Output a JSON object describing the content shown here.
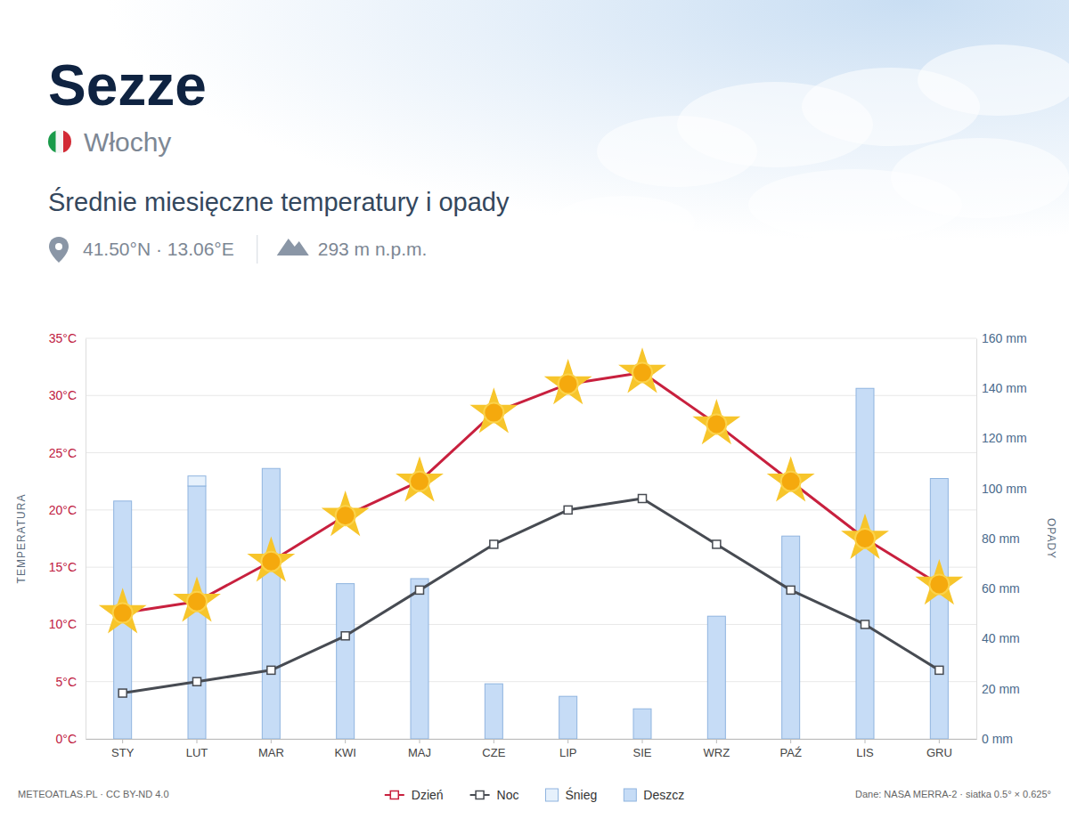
{
  "chart_data": {
    "type": "combo",
    "title": "Sezze",
    "country": "Włochy",
    "subtitle": "Średnie miesięczne temperatury i opady",
    "coordinates": "41.50°N · 13.06°E",
    "elevation": "293 m n.p.m.",
    "ylabel": "TEMPERATURA",
    "y2label": "OPADY",
    "credit": "METEOATLAS.PL · CC BY-ND 4.0",
    "source": "Dane: NASA MERRA-2 · siatka 0.5° × 0.625°",
    "categories": [
      "STY",
      "LUT",
      "MAR",
      "KWI",
      "MAJ",
      "CZE",
      "LIP",
      "SIE",
      "WRZ",
      "PAŹ",
      "LIS",
      "GRU"
    ],
    "series": [
      {
        "name": "Dzień",
        "type": "line",
        "color": "#c8203e",
        "marker": "sun",
        "values": [
          11,
          12,
          15.5,
          19.5,
          22.5,
          28.5,
          31,
          32,
          27.5,
          22.5,
          17.5,
          13.5
        ]
      },
      {
        "name": "Noc",
        "type": "line",
        "color": "#474b52",
        "marker": "square",
        "values": [
          4,
          5,
          6,
          9,
          13,
          17,
          20,
          21,
          17,
          13,
          10,
          6
        ]
      },
      {
        "name": "Śnieg",
        "type": "bar",
        "axis": "y2",
        "color": "#e6f1fc",
        "values": [
          0,
          4,
          0,
          0,
          0,
          0,
          0,
          0,
          0,
          0,
          0,
          0
        ]
      },
      {
        "name": "Deszcz",
        "type": "bar",
        "axis": "y2",
        "color": "#c6dcf6",
        "values": [
          95,
          101,
          108,
          62,
          64,
          22,
          17,
          12,
          49,
          81,
          140,
          104
        ]
      }
    ],
    "ylim": [
      0,
      35
    ],
    "yticks": [
      {
        "value": 0,
        "label": "0°C"
      },
      {
        "value": 5,
        "label": "5°C"
      },
      {
        "value": 10,
        "label": "10°C"
      },
      {
        "value": 15,
        "label": "15°C"
      },
      {
        "value": 20,
        "label": "20°C"
      },
      {
        "value": 25,
        "label": "25°C"
      },
      {
        "value": 30,
        "label": "30°C"
      },
      {
        "value": 35,
        "label": "35°C"
      }
    ],
    "y2lim": [
      0,
      160
    ],
    "y2ticks": [
      {
        "value": 0,
        "label": "0 mm"
      },
      {
        "value": 20,
        "label": "20 mm"
      },
      {
        "value": 40,
        "label": "40 mm"
      },
      {
        "value": 60,
        "label": "60 mm"
      },
      {
        "value": 80,
        "label": "80 mm"
      },
      {
        "value": 100,
        "label": "100 mm"
      },
      {
        "value": 120,
        "label": "120 mm"
      },
      {
        "value": 140,
        "label": "140 mm"
      },
      {
        "value": 160,
        "label": "160 mm"
      }
    ],
    "grid": true,
    "stacked": true,
    "legend": "bottom"
  }
}
